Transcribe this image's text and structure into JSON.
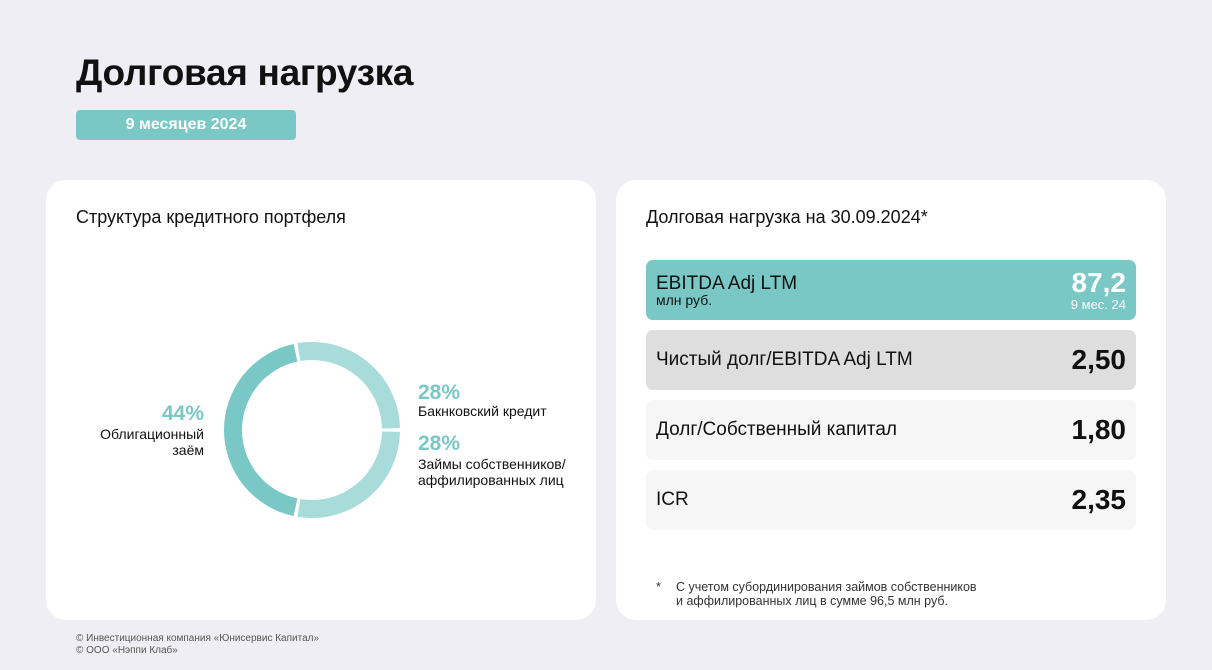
{
  "title": "Долговая нагрузка",
  "period": "9 месяцев 2024",
  "colors": {
    "accent": "#79c8c6",
    "segment_light": "#a8dcda"
  },
  "left_card": {
    "title": "Структура кредитного портфеля"
  },
  "right_card": {
    "title": "Долговая нагрузка на 30.09.2024*",
    "rows": [
      {
        "label": "EBITDA Adj LTM",
        "sublabel": "млн руб.",
        "value": "87,2",
        "value_note": "9 мес. 24"
      },
      {
        "label": "Чистый долг/EBITDA Adj LTM",
        "value": "2,50"
      },
      {
        "label": "Долг/Собственный капитал",
        "value": "1,80"
      },
      {
        "label": "ICR",
        "value": "2,35"
      }
    ],
    "footnote": {
      "mark": "*",
      "line1": "С учетом субординирования займов собственников",
      "line2": "и аффилированных лиц в сумме 96,5 млн руб."
    }
  },
  "chart_data": {
    "type": "pie",
    "categories": [
      "Облигационный заём",
      "Бакнковский кредит",
      "Займы собственников/ аффилированных лиц"
    ],
    "values": [
      44,
      28,
      28
    ],
    "value_labels": [
      "44%",
      "28%",
      "28%"
    ],
    "label_lines": [
      [
        "Облигационный",
        "заём"
      ],
      [
        "Бакнковский кредит"
      ],
      [
        "Займы собственников/",
        "аффилированных лиц"
      ]
    ],
    "unit": "%"
  },
  "footer": {
    "line1": "© Инвестиционная компания «Юнисервис Капитал»",
    "line2": "© ООО «Нэппи Клаб»"
  }
}
